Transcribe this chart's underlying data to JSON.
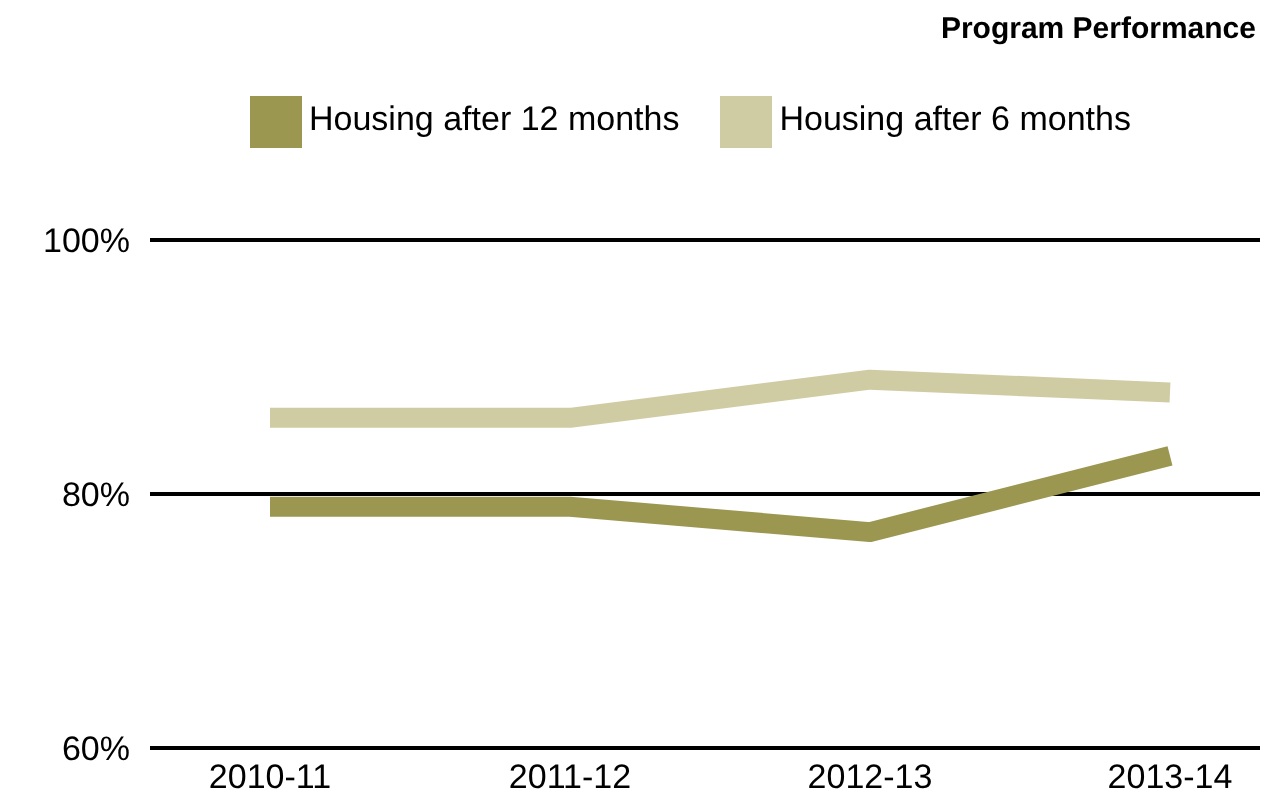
{
  "chart_data": {
    "type": "line",
    "title": "Program Performance",
    "categories": [
      "2010-11",
      "2011-12",
      "2012-13",
      "2013-14"
    ],
    "series": [
      {
        "name": "Housing after 12 months",
        "color": "#9c9750",
        "values": [
          79,
          79,
          77,
          83
        ]
      },
      {
        "name": "Housing after 6 months",
        "color": "#cfcca3",
        "values": [
          86,
          86,
          89,
          88
        ]
      }
    ],
    "ylim": [
      60,
      100
    ],
    "yticks": [
      {
        "value": 60,
        "label": "60%"
      },
      {
        "value": 80,
        "label": "80%"
      },
      {
        "value": 100,
        "label": "100%"
      }
    ],
    "grid": "y",
    "legend": "top",
    "marker": "none",
    "line_style": "solid"
  }
}
